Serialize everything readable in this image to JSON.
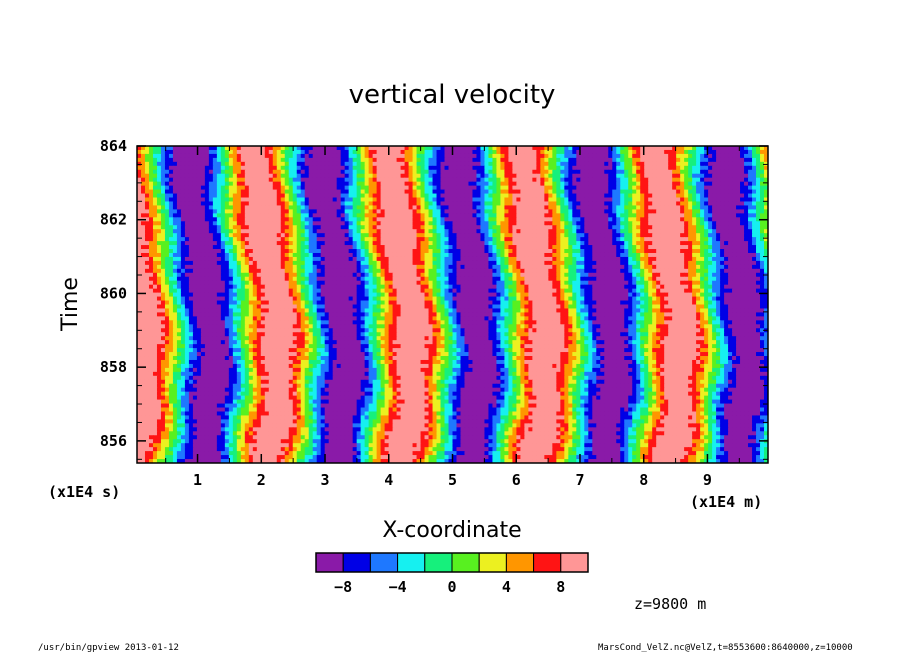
{
  "chart_data": {
    "type": "heatmap",
    "title": "vertical velocity",
    "xlabel": "X-coordinate",
    "ylabel": "Time",
    "x_unit": "(x1E4 m)",
    "y_unit": "(x1E4 s)",
    "xlim": [
      0.05,
      9.95
    ],
    "ylim": [
      855.4,
      864.0
    ],
    "x_ticks": [
      1,
      2,
      3,
      4,
      5,
      6,
      7,
      8,
      9
    ],
    "x_tick_labels": [
      "1",
      "2",
      "3",
      "4",
      "5",
      "6",
      "7",
      "8",
      "9"
    ],
    "y_ticks": [
      856,
      858,
      860,
      862,
      864
    ],
    "y_tick_labels": [
      "856",
      "858",
      "860",
      "862",
      "864"
    ],
    "colorbar": {
      "levels": [
        -10,
        -8,
        -6,
        -4,
        -2,
        0,
        2,
        4,
        6,
        8,
        10
      ],
      "tick_values": [
        -8,
        -4,
        0,
        4,
        8
      ],
      "tick_labels": [
        "−8",
        "−4",
        "0",
        "4",
        "8"
      ],
      "colors": [
        "#8a1aa8",
        "#0000e6",
        "#1e78ff",
        "#16f0f0",
        "#16f07c",
        "#58f020",
        "#ecf020",
        "#ff9600",
        "#ff1414",
        "#ff9696"
      ]
    },
    "field": {
      "description": "periodic waves of amplitude ~10 in X, slowly tilting with Time",
      "wavelength": 2.1,
      "amplitude": 10.5
    }
  },
  "annotations": {
    "z_label": "z=9800  m",
    "footer_left": "/usr/bin/gpview  2013-01-12",
    "footer_right": "MarsCond_VelZ.nc@VelZ,t=8553600:8640000,z=10000"
  }
}
